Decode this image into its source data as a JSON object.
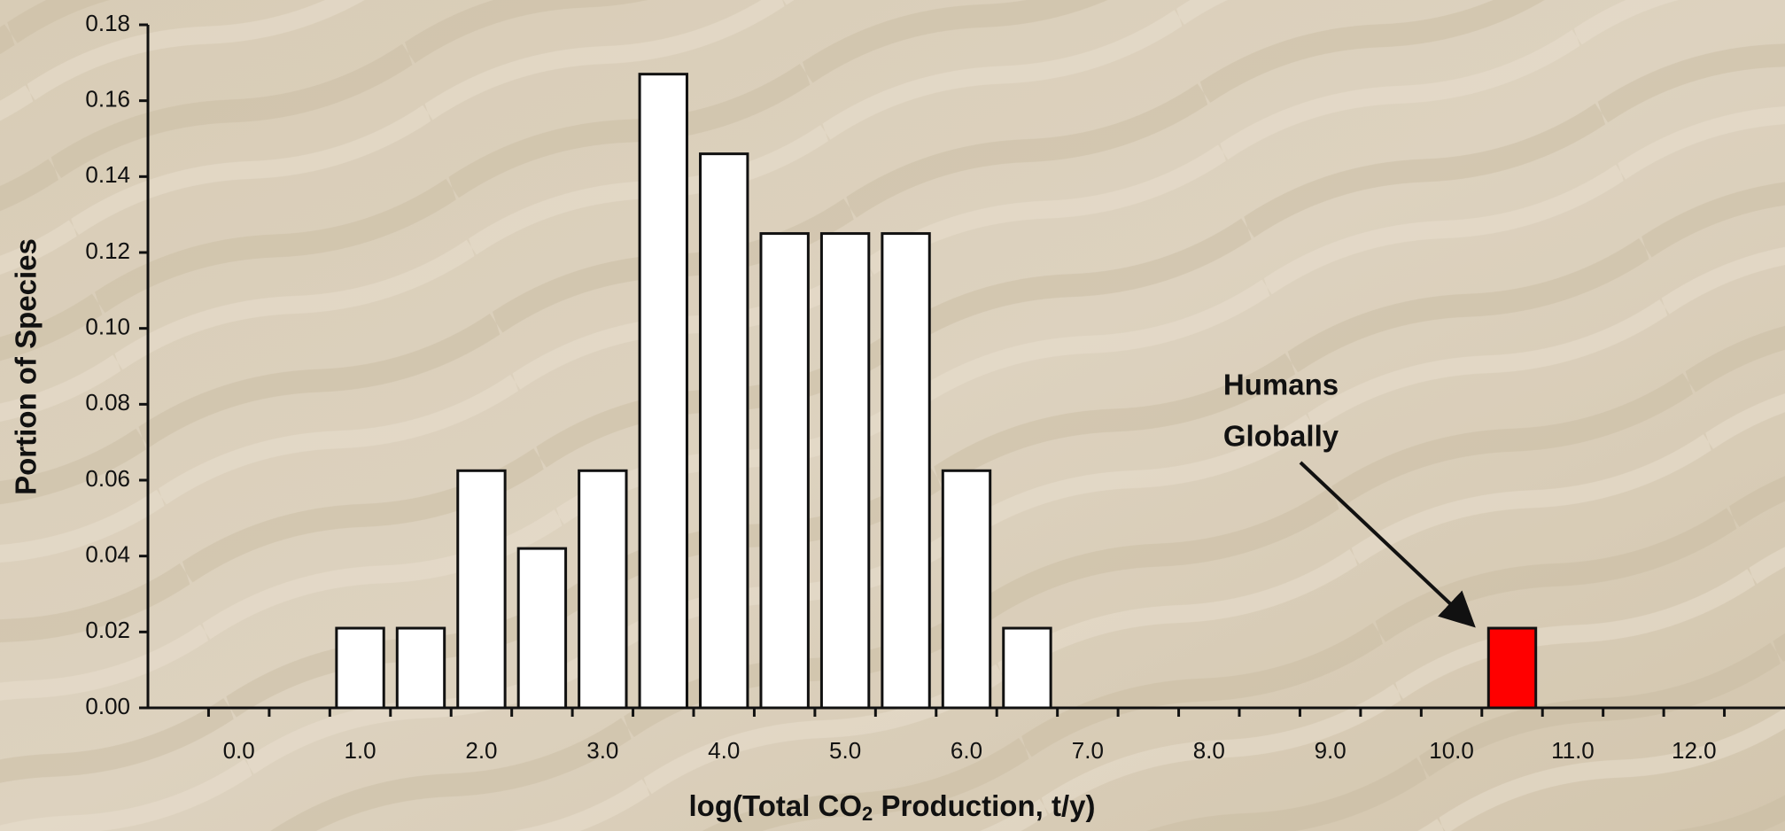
{
  "chart_data": {
    "type": "bar",
    "ylabel": "Portion of Species",
    "xlabel": [
      "log(Total CO",
      "2",
      " Production, t/y)"
    ],
    "categories": [
      null,
      "0.0",
      null,
      "1.0",
      null,
      "2.0",
      null,
      "3.0",
      null,
      "4.0",
      null,
      "5.0",
      null,
      "6.0",
      null,
      "7.0",
      null,
      "8.0",
      null,
      "9.0",
      null,
      "10.0",
      null,
      "11.0",
      null,
      "12.0",
      null
    ],
    "values": [
      0,
      0,
      0,
      0.021,
      0.021,
      0.0625,
      0.042,
      0.0625,
      0.167,
      0.146,
      0.125,
      0.125,
      0.125,
      0.0625,
      0.021,
      0,
      0,
      0,
      0,
      0,
      0,
      0,
      0.021,
      0,
      0,
      0,
      0
    ],
    "colors": [
      "#ffffff",
      "#ffffff",
      "#ffffff",
      "#ffffff",
      "#ffffff",
      "#ffffff",
      "#ffffff",
      "#ffffff",
      "#ffffff",
      "#ffffff",
      "#ffffff",
      "#ffffff",
      "#ffffff",
      "#ffffff",
      "#ffffff",
      "#ffffff",
      "#ffffff",
      "#ffffff",
      "#ffffff",
      "#ffffff",
      "#ffffff",
      "#ffffff",
      "#ff0000",
      "#ffffff",
      "#ffffff",
      "#ffffff",
      "#ffffff"
    ],
    "ylim": [
      0,
      0.18
    ],
    "yticks": [
      {
        "value": 0,
        "label": "0.00"
      },
      {
        "value": 0.02,
        "label": "0.02"
      },
      {
        "value": 0.04,
        "label": "0.04"
      },
      {
        "value": 0.06,
        "label": "0.06"
      },
      {
        "value": 0.08,
        "label": "0.08"
      },
      {
        "value": 0.1,
        "label": "0.10"
      },
      {
        "value": 0.12,
        "label": "0.12"
      },
      {
        "value": 0.14,
        "label": "0.14"
      },
      {
        "value": 0.16,
        "label": "0.16"
      },
      {
        "value": 0.18,
        "label": "0.18"
      }
    ],
    "annotation": [
      "Humans",
      "Globally"
    ],
    "grid": false
  }
}
